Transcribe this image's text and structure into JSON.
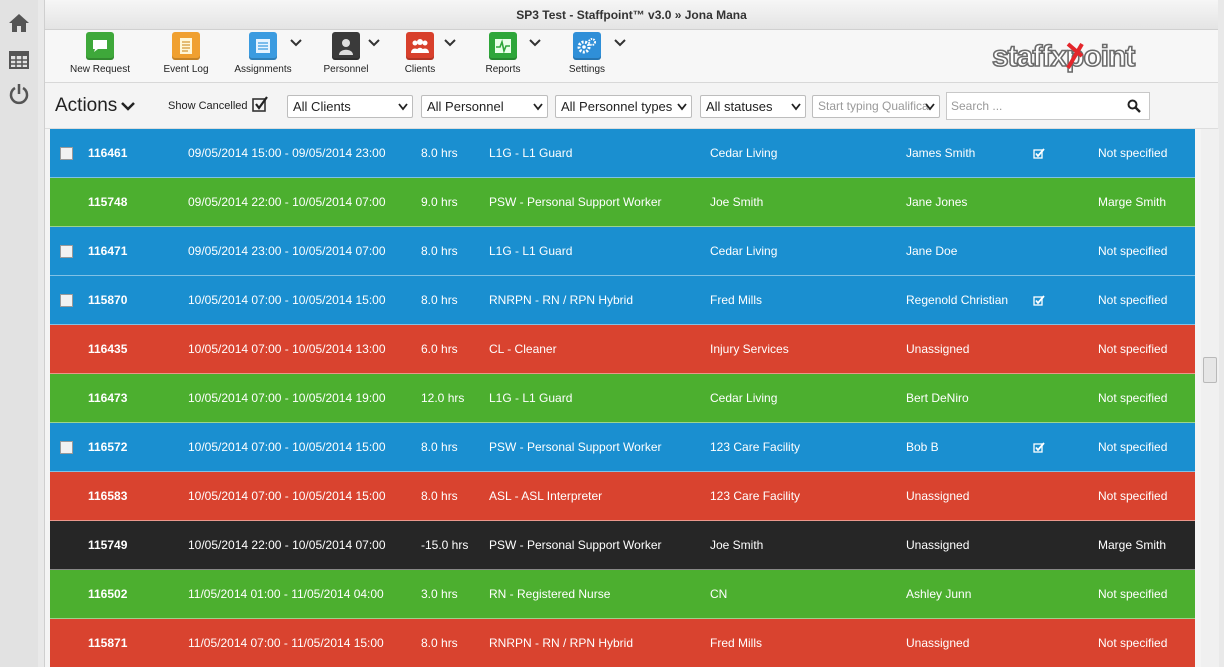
{
  "window": {
    "title": "SP3 Test - Staffpoint™ v3.0  »  Jona Mana"
  },
  "rail": {
    "icons": [
      "home-icon",
      "calendar-icon",
      "power-icon"
    ]
  },
  "toolbar": {
    "items": [
      {
        "label": "New Request",
        "icon": "speech-bubble-icon",
        "color": "#3ea83a"
      },
      {
        "label": "Event Log",
        "icon": "document-icon",
        "color": "#f0a030"
      },
      {
        "label": "Assignments",
        "icon": "calendar-list-icon",
        "color": "#3b9be0"
      },
      {
        "label": "Personnel",
        "icon": "person-icon",
        "color": "#3a3a3a"
      },
      {
        "label": "Clients",
        "icon": "group-icon",
        "color": "#d8402c"
      },
      {
        "label": "Reports",
        "icon": "pulse-icon",
        "color": "#2ea63a"
      },
      {
        "label": "Settings",
        "icon": "gears-icon",
        "color": "#2f8fd8"
      }
    ]
  },
  "logo": {
    "text": "staffxpoint"
  },
  "filters": {
    "actions_label": "Actions",
    "show_cancelled_label": "Show Cancelled",
    "show_cancelled_checked": true,
    "clients": "All Clients",
    "personnel": "All Personnel",
    "personnel_types": "All Personnel types",
    "statuses": "All statuses",
    "qualifications_placeholder": "Start typing Qualifica",
    "search_placeholder": "Search ..."
  },
  "colors": {
    "blue": "#1a8fd0",
    "green": "#4caf2f",
    "red": "#d9432f",
    "black": "#262626"
  },
  "rows": [
    {
      "id": "116461",
      "datetime": "09/05/2014 15:00 - 09/05/2014 23:00",
      "hours": "8.0 hrs",
      "position": "L1G - L1 Guard",
      "client": "Cedar Living",
      "personnel": "James Smith",
      "supervisor": "Not specified",
      "status_color": "blue",
      "has_checkbox": true,
      "has_tick": true
    },
    {
      "id": "115748",
      "datetime": "09/05/2014 22:00 - 10/05/2014 07:00",
      "hours": "9.0 hrs",
      "position": "PSW - Personal Support Worker",
      "client": "Joe Smith",
      "personnel": "Jane Jones",
      "supervisor": "Marge Smith",
      "status_color": "green",
      "has_checkbox": false,
      "has_tick": false
    },
    {
      "id": "116471",
      "datetime": "09/05/2014 23:00 - 10/05/2014 07:00",
      "hours": "8.0 hrs",
      "position": "L1G - L1 Guard",
      "client": "Cedar Living",
      "personnel": "Jane Doe",
      "supervisor": "Not specified",
      "status_color": "blue",
      "has_checkbox": true,
      "has_tick": false
    },
    {
      "id": "115870",
      "datetime": "10/05/2014 07:00 - 10/05/2014 15:00",
      "hours": "8.0 hrs",
      "position": "RNRPN - RN / RPN Hybrid",
      "client": "Fred Mills",
      "personnel": "Regenold Christian",
      "supervisor": "Not specified",
      "status_color": "blue",
      "has_checkbox": true,
      "has_tick": true
    },
    {
      "id": "116435",
      "datetime": "10/05/2014 07:00 - 10/05/2014 13:00",
      "hours": "6.0 hrs",
      "position": "CL - Cleaner",
      "client": "Injury Services",
      "personnel": "Unassigned",
      "supervisor": "Not specified",
      "status_color": "red",
      "has_checkbox": false,
      "has_tick": false
    },
    {
      "id": "116473",
      "datetime": "10/05/2014 07:00 - 10/05/2014 19:00",
      "hours": "12.0 hrs",
      "position": "L1G - L1 Guard",
      "client": "Cedar Living",
      "personnel": "Bert DeNiro",
      "supervisor": "Not specified",
      "status_color": "green",
      "has_checkbox": false,
      "has_tick": false
    },
    {
      "id": "116572",
      "datetime": "10/05/2014 07:00 - 10/05/2014 15:00",
      "hours": "8.0 hrs",
      "position": "PSW - Personal Support Worker",
      "client": "123 Care Facility",
      "personnel": "Bob B",
      "supervisor": "Not specified",
      "status_color": "blue",
      "has_checkbox": true,
      "has_tick": true
    },
    {
      "id": "116583",
      "datetime": "10/05/2014 07:00 - 10/05/2014 15:00",
      "hours": "8.0 hrs",
      "position": "ASL - ASL Interpreter",
      "client": "123 Care Facility",
      "personnel": "Unassigned",
      "supervisor": "Not specified",
      "status_color": "red",
      "has_checkbox": false,
      "has_tick": false
    },
    {
      "id": "115749",
      "datetime": "10/05/2014 22:00 - 10/05/2014 07:00",
      "hours": "-15.0 hrs",
      "position": "PSW - Personal Support Worker",
      "client": "Joe Smith",
      "personnel": "Unassigned",
      "supervisor": "Marge Smith",
      "status_color": "black",
      "has_checkbox": false,
      "has_tick": false
    },
    {
      "id": "116502",
      "datetime": "11/05/2014 01:00 - 11/05/2014 04:00",
      "hours": "3.0 hrs",
      "position": "RN - Registered Nurse",
      "client": "CN",
      "personnel": "Ashley Junn",
      "supervisor": "Not specified",
      "status_color": "green",
      "has_checkbox": false,
      "has_tick": false
    },
    {
      "id": "115871",
      "datetime": "11/05/2014 07:00 - 11/05/2014 15:00",
      "hours": "8.0 hrs",
      "position": "RNRPN - RN / RPN Hybrid",
      "client": "Fred Mills",
      "personnel": "Unassigned",
      "supervisor": "Not specified",
      "status_color": "red",
      "has_checkbox": false,
      "has_tick": false
    }
  ]
}
